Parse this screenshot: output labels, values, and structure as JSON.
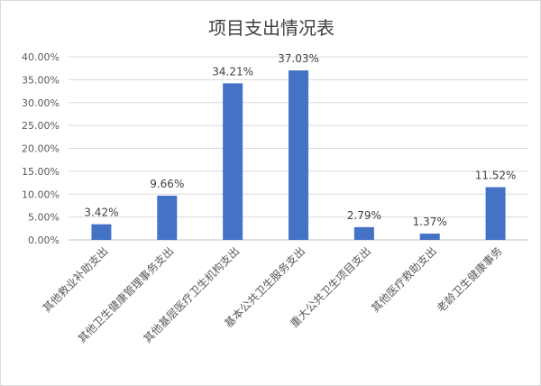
{
  "chart_data": {
    "type": "bar",
    "title": "项目支出情况表",
    "categories": [
      "其他救业补助支出",
      "其他卫生健康管理事务支出",
      "其他基层医疗卫生机构支出",
      "基本公共卫生服务支出",
      "重大公共卫生项目支出",
      "其他医疗救助支出",
      "老龄卫生健康事务"
    ],
    "values": [
      3.42,
      9.66,
      34.21,
      37.03,
      2.79,
      1.37,
      11.52
    ],
    "value_labels": [
      "3.42%",
      "9.66%",
      "34.21%",
      "37.03%",
      "2.79%",
      "1.37%",
      "11.52%"
    ],
    "ylim": [
      0,
      40
    ],
    "yticks": [
      "0.00%",
      "5.00%",
      "10.00%",
      "15.00%",
      "20.00%",
      "25.00%",
      "30.00%",
      "35.00%",
      "40.00%"
    ],
    "grid": true,
    "bar_color": "#4472c4",
    "xlabel": "",
    "ylabel": ""
  }
}
